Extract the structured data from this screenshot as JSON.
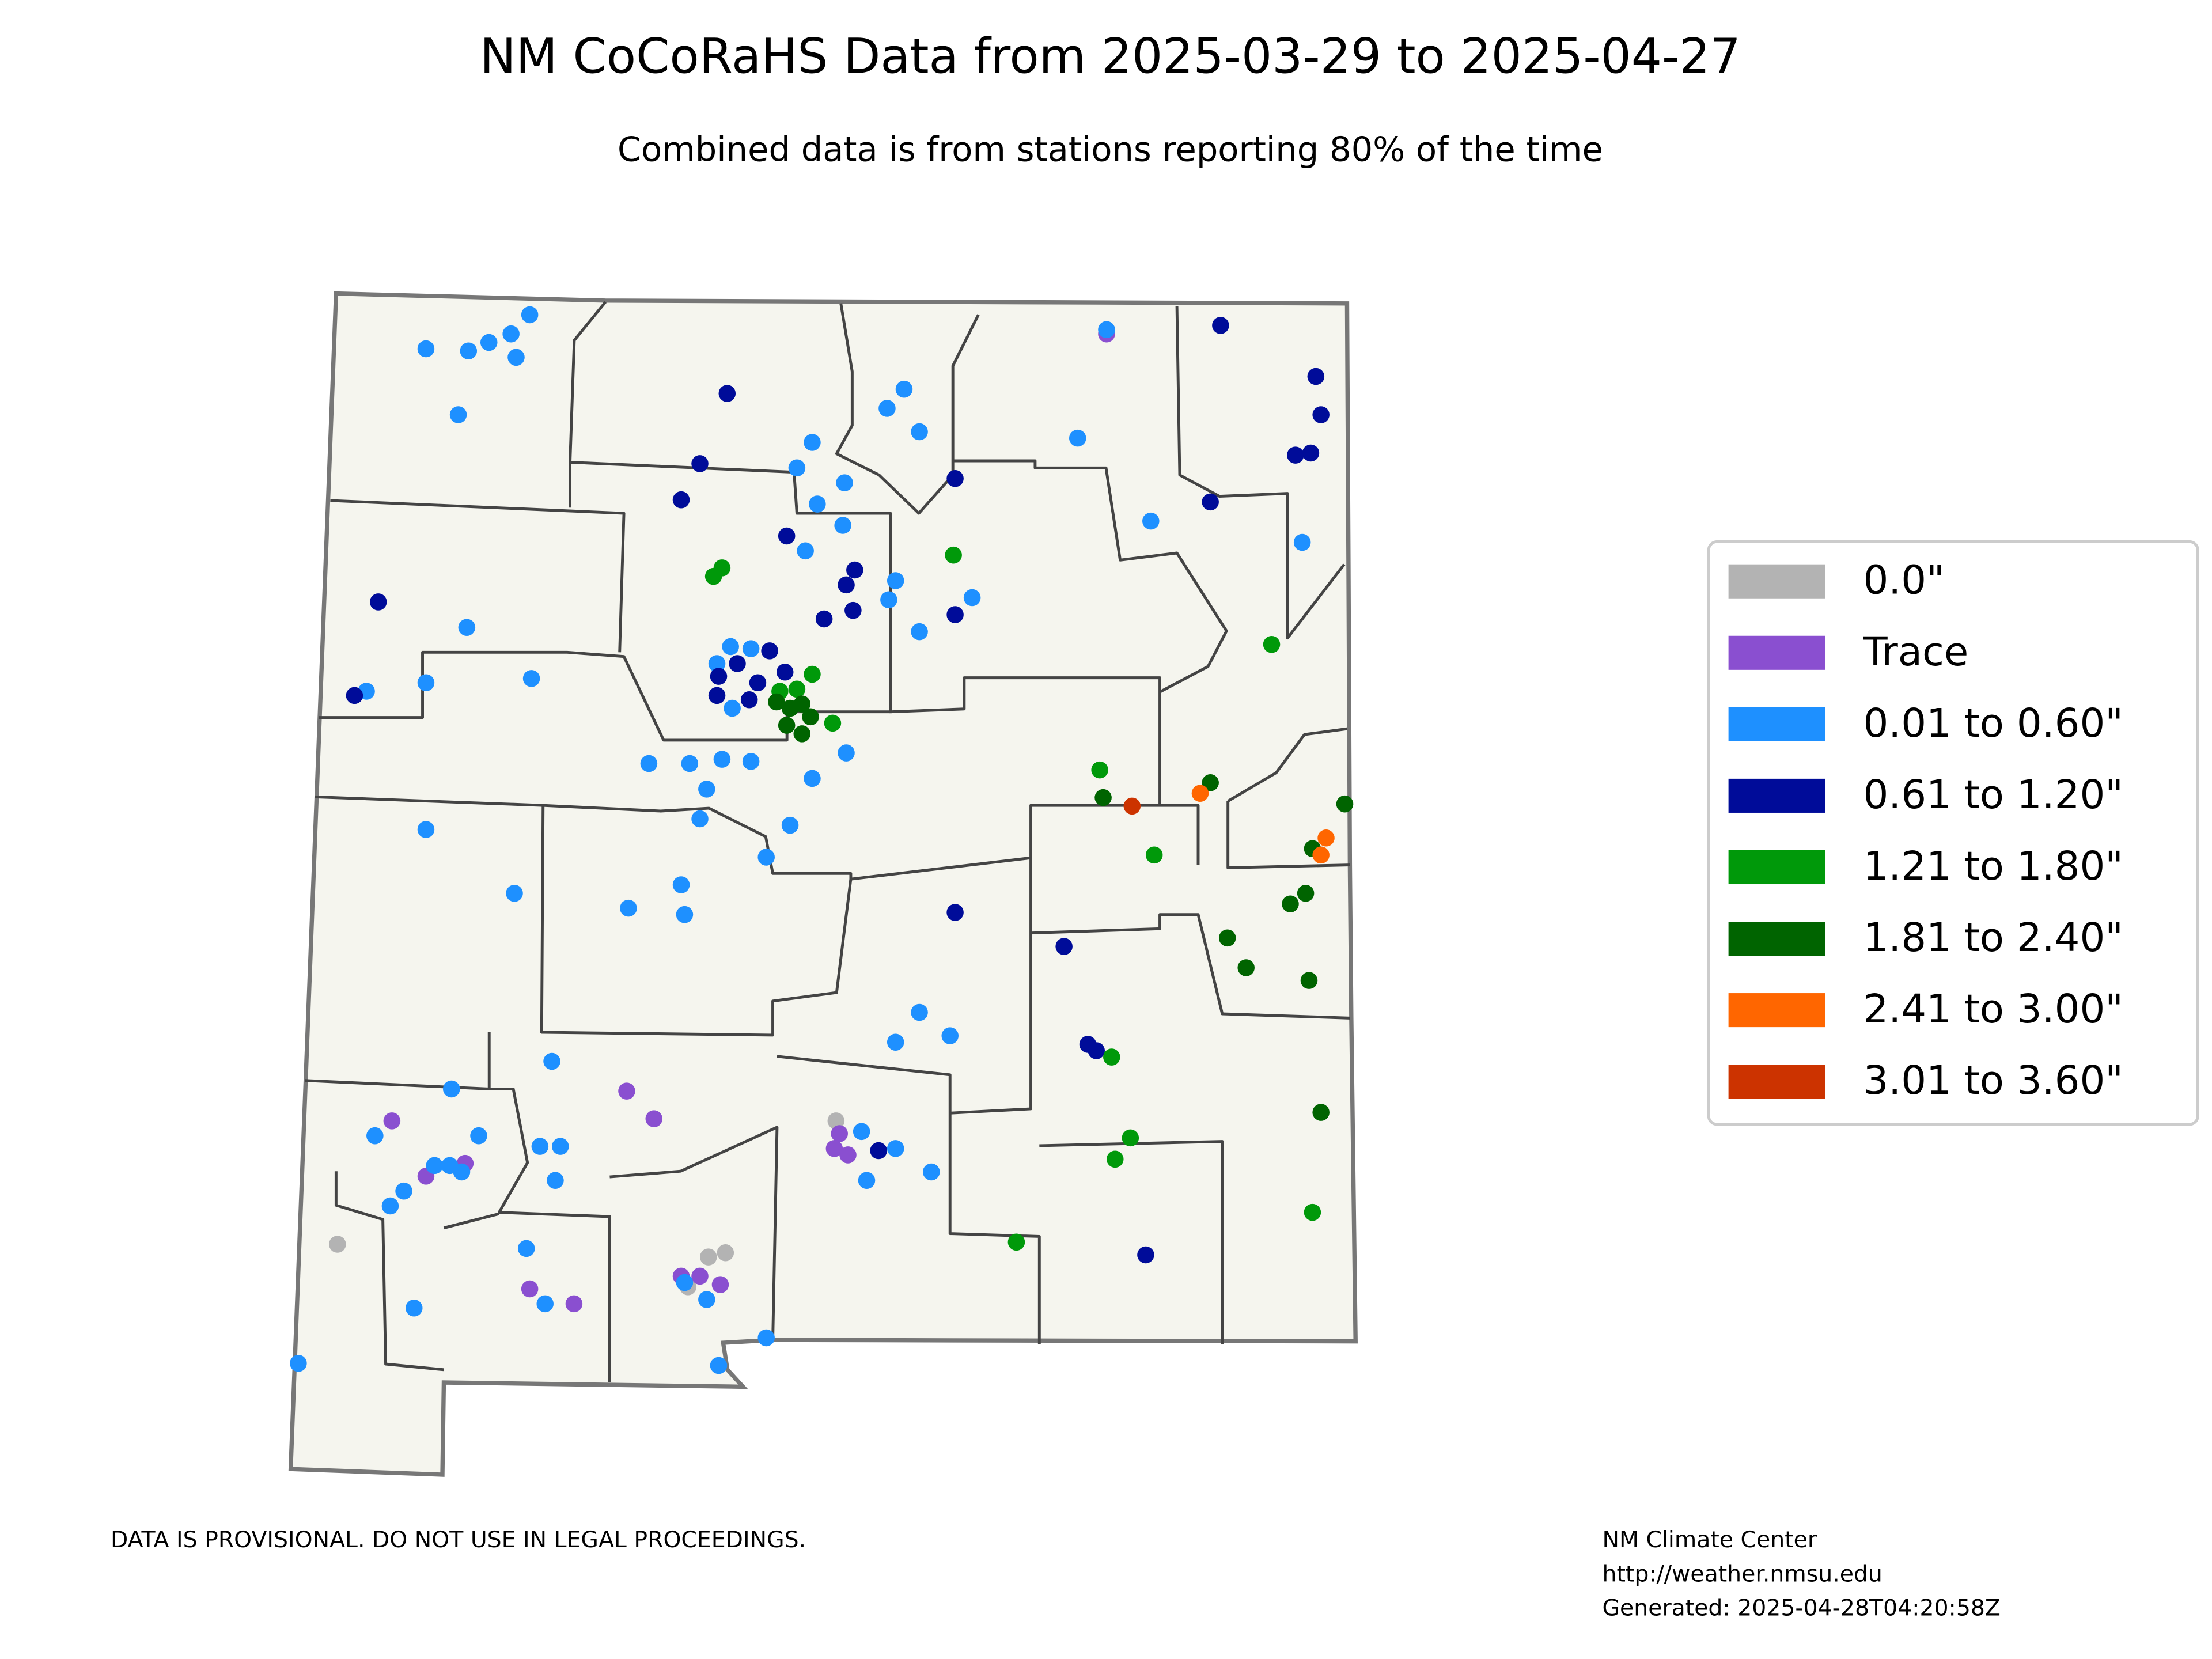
{
  "chart_data": {
    "type": "map",
    "title": "NM CoCoRaHS Data from 2025-03-29 to 2025-04-27",
    "subtitle": "Combined data is from stations reporting 80% of the time",
    "disclaimer": "DATA IS PROVISIONAL. DO NOT USE IN LEGAL PROCEEDINGS.",
    "credit": [
      "NM Climate Center",
      "http://weather.nmsu.edu",
      "Generated: 2025-04-28T04:20:58Z"
    ],
    "series": [
      {
        "name": "0.0\"",
        "color": "#b3b3b3",
        "lon": [
          -108.85,
          -105.92,
          -106.67,
          -106.57,
          -106.79
        ],
        "lat": [
          32.55,
          33.13,
          32.49,
          32.51,
          32.35
        ]
      },
      {
        "name": "Trace",
        "color": "#8a4fd0",
        "lon": [
          -104.33,
          -108.53,
          -108.33,
          -108.1,
          -107.15,
          -106.99,
          -105.9,
          -105.93,
          -105.85,
          -106.83,
          -106.72,
          -106.6,
          -107.46,
          -107.72
        ],
        "lat": [
          36.83,
          33.13,
          32.87,
          32.93,
          33.27,
          33.14,
          33.07,
          33.0,
          32.97,
          32.4,
          32.4,
          32.36,
          32.27,
          32.34
        ]
      },
      {
        "name": "0.01 to 0.60\"",
        "color": "#1e90ff",
        "lon": [
          -108.33,
          -108.08,
          -107.96,
          -107.83,
          -107.72,
          -107.8,
          -108.14,
          -108.09,
          -108.33,
          -107.71,
          -108.68,
          -108.33,
          -107.81,
          -107.14,
          -106.81,
          -106.83,
          -107.02,
          -106.78,
          -106.68,
          -106.72,
          -106.59,
          -106.42,
          -106.06,
          -106.19,
          -106.33,
          -105.86,
          -106.06,
          -106.15,
          -105.87,
          -106.03,
          -105.88,
          -106.1,
          -105.57,
          -105.61,
          -105.43,
          -105.12,
          -105.62,
          -105.52,
          -105.43,
          -104.5,
          -104.33,
          -104.07,
          -103.18,
          -106.54,
          -106.42,
          -106.53,
          -106.62,
          -105.43,
          -105.57,
          -105.25,
          -107.59,
          -108.18,
          -108.63,
          -108.02,
          -107.66,
          -107.54,
          -107.57,
          -108.28,
          -108.19,
          -108.12,
          -108.46,
          -108.54,
          -107.74,
          -107.63,
          -108.4,
          -109.08,
          -106.68,
          -106.61,
          -106.33,
          -106.81,
          -105.74,
          -105.57,
          -105.77,
          -105.36
        ],
        "lat": [
          36.76,
          36.75,
          36.79,
          36.83,
          36.92,
          36.72,
          36.45,
          35.45,
          35.19,
          35.21,
          35.15,
          34.5,
          34.2,
          34.13,
          34.1,
          34.24,
          34.81,
          34.81,
          34.69,
          34.55,
          34.83,
          34.82,
          34.74,
          34.52,
          34.37,
          34.86,
          36.32,
          36.2,
          36.13,
          36.03,
          35.93,
          35.81,
          35.67,
          35.58,
          35.43,
          35.59,
          36.48,
          36.57,
          36.37,
          36.34,
          36.85,
          35.95,
          35.85,
          35.36,
          35.35,
          35.07,
          35.28,
          33.64,
          33.5,
          33.53,
          33.41,
          33.28,
          33.06,
          33.06,
          33.01,
          33.01,
          32.85,
          32.92,
          32.92,
          32.89,
          32.8,
          32.73,
          32.53,
          32.27,
          32.25,
          31.99,
          32.29,
          31.98,
          32.11,
          32.37,
          32.85,
          33.0,
          33.08,
          32.89
        ]
      },
      {
        "name": "0.61 to 1.20\"",
        "color": "#000c99",
        "lon": [
          -106.56,
          -106.72,
          -106.83,
          -106.21,
          -108.61,
          -108.75,
          -103.66,
          -103.1,
          -103.07,
          -103.22,
          -103.13,
          -103.72,
          -105.22,
          -105.22,
          -105.86,
          -105.81,
          -105.99,
          -105.82,
          -106.61,
          -106.5,
          -106.38,
          -106.62,
          -106.43,
          -106.31,
          -106.22,
          -105.22,
          -104.58,
          -104.44,
          -104.39,
          -105.67,
          -104.1
        ],
        "lat": [
          36.55,
          36.22,
          36.05,
          35.88,
          35.57,
          35.13,
          36.87,
          36.63,
          36.45,
          36.26,
          36.27,
          36.04,
          36.15,
          35.51,
          35.65,
          35.72,
          35.49,
          35.53,
          35.22,
          35.28,
          35.19,
          35.13,
          35.11,
          35.34,
          35.24,
          34.11,
          33.95,
          33.49,
          33.46,
          32.99,
          32.5
        ]
      },
      {
        "name": "1.21 to 1.80\"",
        "color": "#00990a",
        "lon": [
          -106.59,
          -106.64,
          -106.06,
          -105.94,
          -105.23,
          -103.36,
          -104.37,
          -104.05,
          -104.3,
          -104.19,
          -104.28,
          -104.86,
          -103.12,
          -106.25,
          -106.15
        ],
        "lat": [
          35.73,
          35.69,
          35.23,
          35.0,
          35.79,
          35.37,
          34.78,
          34.38,
          33.43,
          33.05,
          32.95,
          32.56,
          32.7,
          35.15,
          35.16
        ]
      },
      {
        "name": "1.81 to 2.40\"",
        "color": "#006400",
        "lon": [
          -106.27,
          -106.19,
          -106.12,
          -106.21,
          -106.12,
          -106.07,
          -104.35,
          -103.72,
          -102.93,
          -103.12,
          -103.16,
          -103.25,
          -103.62,
          -103.51,
          -103.14,
          -103.07
        ],
        "lat": [
          35.1,
          35.07,
          35.09,
          34.99,
          34.95,
          35.03,
          34.65,
          34.72,
          34.62,
          34.41,
          34.2,
          34.15,
          33.99,
          33.85,
          33.79,
          33.17
        ]
      },
      {
        "name": "2.41 to 3.00\"",
        "color": "#ff6600",
        "lon": [
          -103.78,
          -103.04,
          -103.07
        ],
        "lat": [
          34.67,
          34.46,
          34.38
        ]
      },
      {
        "name": "3.01 to 3.60\"",
        "color": "#cc3300",
        "lon": [
          -104.18
        ],
        "lat": [
          34.61
        ]
      }
    ]
  }
}
